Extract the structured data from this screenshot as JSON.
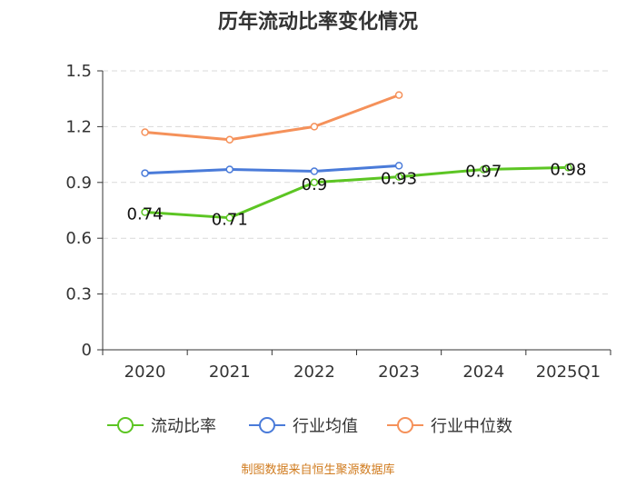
{
  "chart_data": {
    "type": "line",
    "title": "历年流动比率变化情况",
    "categories": [
      "2020",
      "2021",
      "2022",
      "2023",
      "2024",
      "2025Q1"
    ],
    "y_ticks": [
      "0",
      "0.3",
      "0.6",
      "0.9",
      "1.2",
      "1.5"
    ],
    "ylim": [
      0,
      1.5
    ],
    "grid": true,
    "legend_position": "bottom",
    "series": [
      {
        "name": "流动比率",
        "color": "#5cc523",
        "values": [
          0.74,
          0.71,
          0.9,
          0.93,
          0.97,
          0.98
        ],
        "labels": [
          "0.74",
          "0.71",
          "0.9",
          "0.93",
          "0.97",
          "0.98"
        ]
      },
      {
        "name": "行业均值",
        "color": "#4a7bd9",
        "values": [
          0.95,
          0.97,
          0.96,
          0.99,
          null,
          null
        ]
      },
      {
        "name": "行业中位数",
        "color": "#f5915a",
        "values": [
          1.17,
          1.13,
          1.2,
          1.37,
          null,
          null
        ]
      }
    ]
  },
  "source_text": "制图数据来自恒生聚源数据库"
}
